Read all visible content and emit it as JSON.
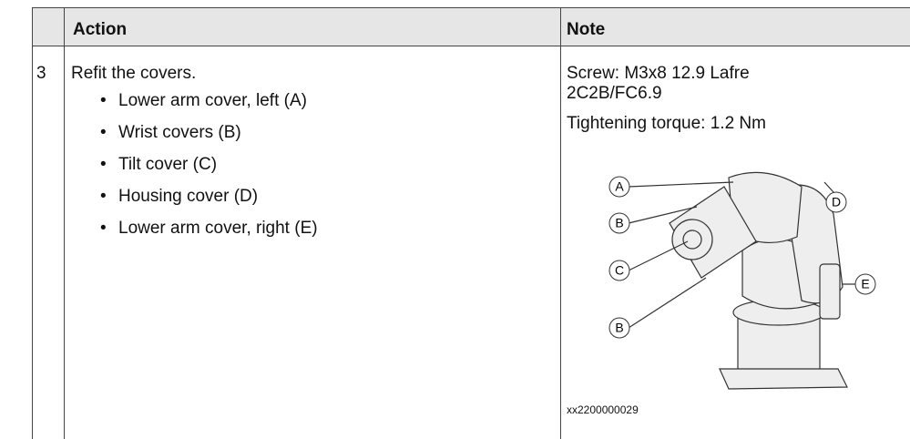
{
  "table": {
    "header": {
      "action": "Action",
      "note": "Note"
    },
    "rows": [
      {
        "step": "3",
        "action": {
          "text": "Refit the covers.",
          "items": [
            "Lower arm cover, left (A)",
            "Wrist covers (B)",
            "Tilt cover (C)",
            "Housing cover (D)",
            "Lower arm cover, right (E)"
          ]
        },
        "note": {
          "lines": [
            "Screw: M3x8 12.9 Lafre",
            "2C2B/FC6.9"
          ],
          "torque": "Tightening torque: 1.2 Nm",
          "figure": {
            "labels": [
              "A",
              "B",
              "C",
              "B",
              "D",
              "E"
            ],
            "id": "xx2200000029"
          }
        }
      }
    ]
  }
}
